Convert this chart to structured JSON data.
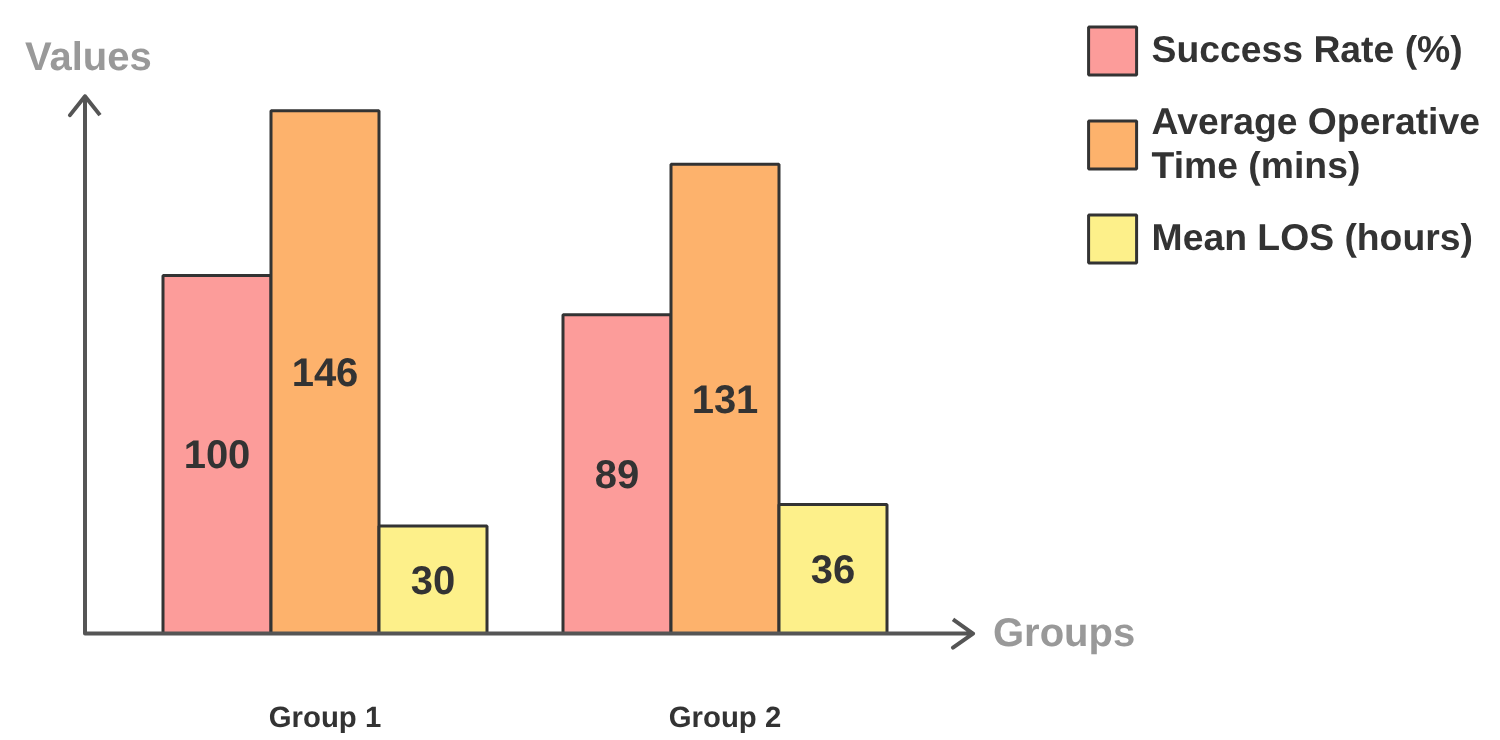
{
  "chart_data": {
    "type": "bar",
    "xlabel": "Groups",
    "ylabel": "Values",
    "categories": [
      "Group 1",
      "Group 2"
    ],
    "series": [
      {
        "name": "Success Rate (%)",
        "color": "#fc9c9a",
        "values": [
          100,
          89
        ]
      },
      {
        "name": "Average Operative Time (mins)",
        "color": "#fdb26c",
        "values": [
          146,
          131
        ]
      },
      {
        "name": "Mean LOS (hours)",
        "color": "#fdf08a",
        "values": [
          30,
          36
        ]
      }
    ],
    "ylim": [
      0,
      150
    ],
    "tick_labels": "x",
    "data_labels": true,
    "legend": "top right",
    "grid": false
  }
}
